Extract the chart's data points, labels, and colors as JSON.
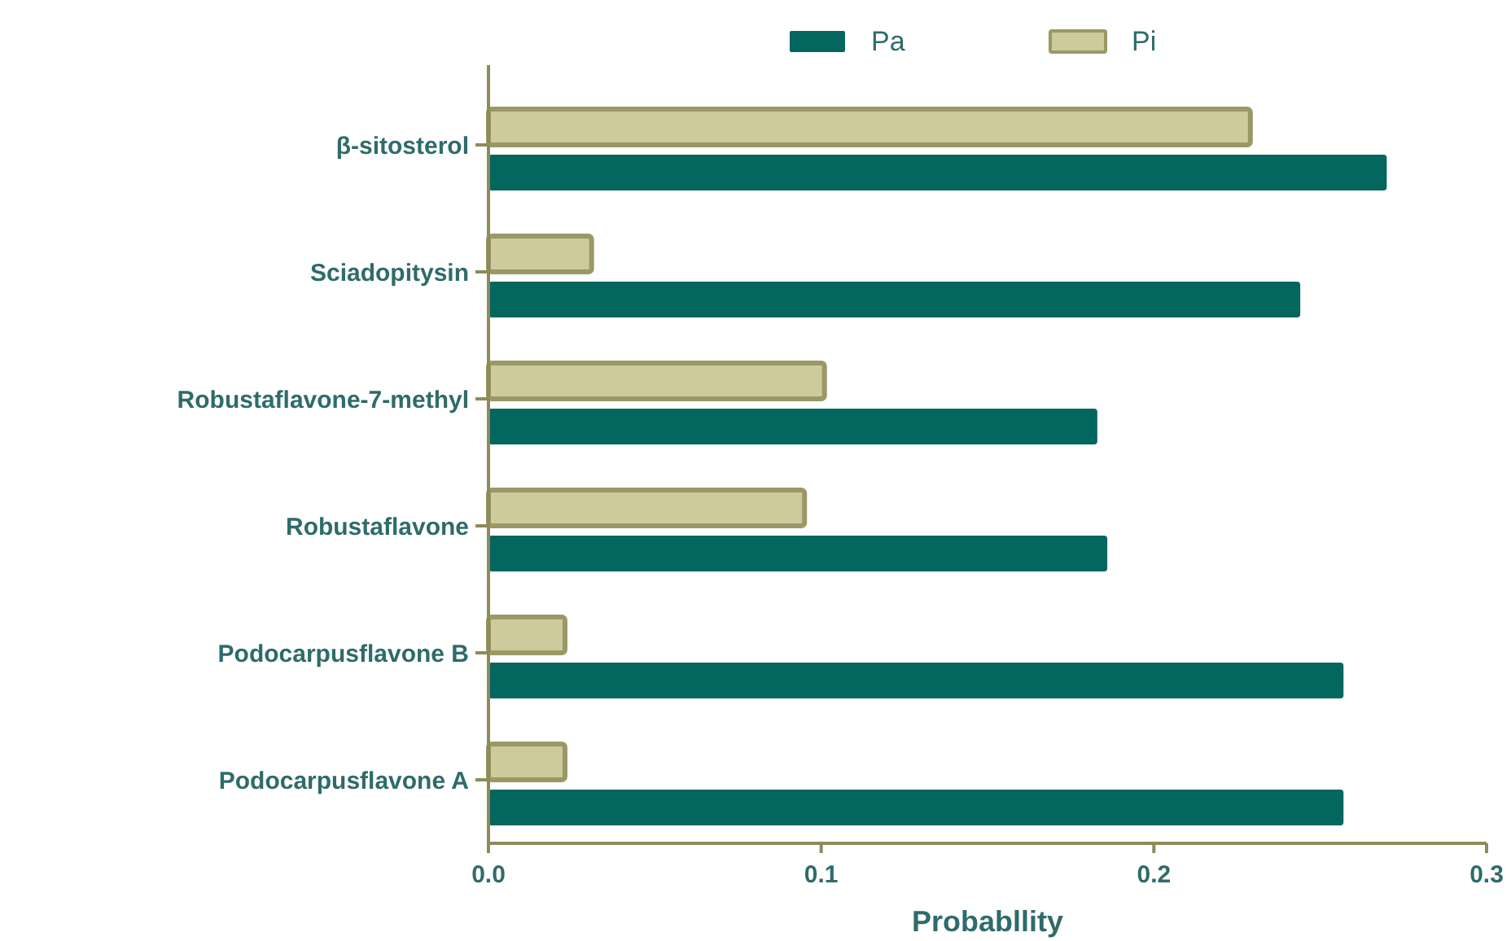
{
  "chart_data": {
    "type": "bar",
    "orientation": "horizontal",
    "xlabel": "Probabllity",
    "categories": [
      "β-sitosterol",
      "Sciadopitysin",
      "Robustaflavone-7-methyl",
      "Robustaflavone",
      "Podocarpusflavone B",
      "Podocarpusflavone A"
    ],
    "series": [
      {
        "name": "Pa",
        "color": "#03665f",
        "values": [
          0.27,
          0.244,
          0.183,
          0.186,
          0.257,
          0.257
        ]
      },
      {
        "name": "Pi",
        "color": "#cdcb9b",
        "values": [
          0.229,
          0.031,
          0.101,
          0.095,
          0.023,
          0.023
        ]
      }
    ],
    "xlim": [
      0,
      0.3
    ],
    "xticks": [
      {
        "value": 0,
        "label": "0.0"
      },
      0.1,
      0.2,
      0.3
    ],
    "grid": false,
    "legend": "top"
  }
}
